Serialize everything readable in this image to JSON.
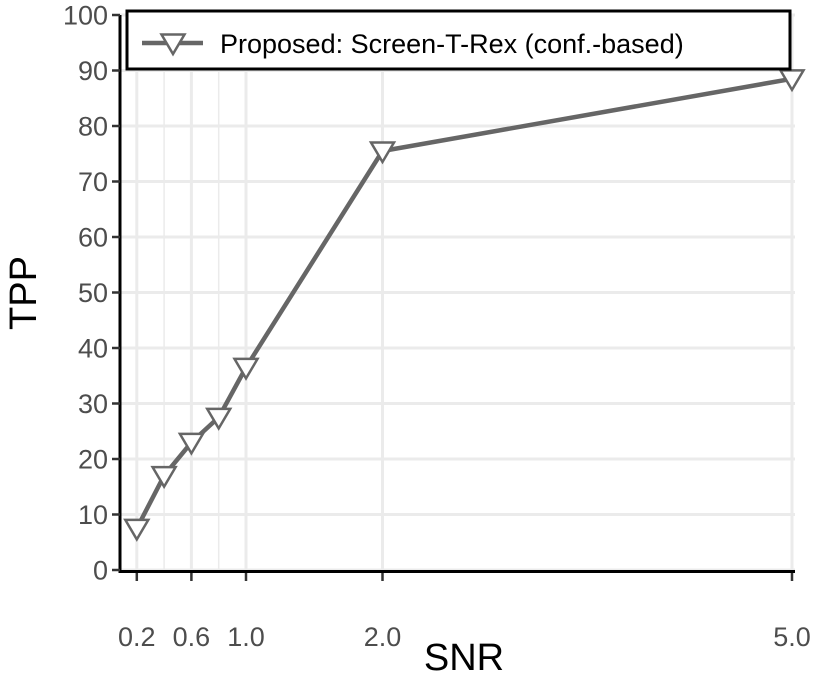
{
  "chart_data": {
    "type": "line",
    "xlabel": "SNR",
    "ylabel": "TPP",
    "x_ticks": [
      0.2,
      0.6,
      1.0,
      2.0,
      5.0
    ],
    "x_tick_labels": [
      "0.2",
      "0.6",
      "1.0",
      "2.0",
      "5.0"
    ],
    "y_ticks": [
      0,
      10,
      20,
      30,
      40,
      50,
      60,
      70,
      80,
      90,
      100
    ],
    "y_tick_labels": [
      "0",
      "10",
      "20",
      "30",
      "40",
      "50",
      "60",
      "70",
      "80",
      "90",
      "100"
    ],
    "xlim": [
      0.1,
      5.0
    ],
    "ylim": [
      0,
      100
    ],
    "grid": true,
    "legend_position": "top-right",
    "series": [
      {
        "name": "Proposed: Screen-T-Rex (conf.-based)",
        "color": "#666666",
        "marker": "triangle-down",
        "x": [
          0.2,
          0.4,
          0.6,
          0.8,
          1.0,
          2.0,
          5.0
        ],
        "y": [
          7.5,
          17,
          23,
          27.5,
          36.5,
          75.5,
          88.5
        ]
      }
    ]
  }
}
